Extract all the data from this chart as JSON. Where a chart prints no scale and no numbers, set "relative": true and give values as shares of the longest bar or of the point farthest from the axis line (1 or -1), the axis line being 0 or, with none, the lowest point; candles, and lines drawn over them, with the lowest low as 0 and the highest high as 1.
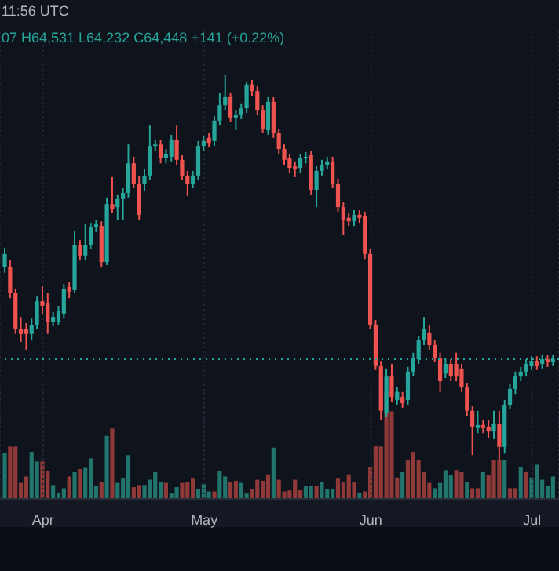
{
  "chart_data": [
    {
      "type": "candlestick",
      "relative": true,
      "tick_labels": false,
      "grid": "x",
      "annotations": [
        "11:56 UTC",
        "07 H64,531 L64,232 C64,448 +141 (+0.22%)"
      ],
      "xlim": [
        "--03-24",
        "--07-06"
      ],
      "xticks": [
        {
          "value": "--04-01",
          "label": null
        },
        {
          "value": "--05-01",
          "label": null
        },
        {
          "value": "--06-01",
          "label": null
        },
        {
          "value": "--07-01",
          "label": null
        }
      ],
      "ref_lines": [
        {
          "axis": "y",
          "value": 0.261,
          "color": "#26a69a",
          "line_style": "dotted"
        }
      ],
      "x": [
        "--03-25",
        "--03-26",
        "--03-27",
        "--03-28",
        "--03-29",
        "--03-30",
        "--03-31",
        "--04-01",
        "--04-02",
        "--04-03",
        "--04-04",
        "--04-05",
        "--04-06",
        "--04-07",
        "--04-08",
        "--04-09",
        "--04-10",
        "--04-11",
        "--04-12",
        "--04-13",
        "--04-14",
        "--04-15",
        "--04-16",
        "--04-17",
        "--04-18",
        "--04-19",
        "--04-20",
        "--04-21",
        "--04-22",
        "--04-23",
        "--04-24",
        "--04-25",
        "--04-26",
        "--04-27",
        "--04-28",
        "--04-29",
        "--04-30",
        "--05-01",
        "--05-02",
        "--05-03",
        "--05-04",
        "--05-05",
        "--05-06",
        "--05-07",
        "--05-08",
        "--05-09",
        "--05-10",
        "--05-11",
        "--05-12",
        "--05-13",
        "--05-14",
        "--05-15",
        "--05-16",
        "--05-17",
        "--05-18",
        "--05-19",
        "--05-20",
        "--05-21",
        "--05-22",
        "--05-23",
        "--05-24",
        "--05-25",
        "--05-26",
        "--05-27",
        "--05-28",
        "--05-29",
        "--05-30",
        "--05-31",
        "--06-01",
        "--06-02",
        "--06-03",
        "--06-04",
        "--06-05",
        "--06-06",
        "--06-07",
        "--06-08",
        "--06-09",
        "--06-10",
        "--06-11",
        "--06-12",
        "--06-13",
        "--06-14",
        "--06-15",
        "--06-16",
        "--06-17",
        "--06-18",
        "--06-19",
        "--06-20",
        "--06-21",
        "--06-22",
        "--06-23",
        "--06-24",
        "--06-25",
        "--06-26",
        "--06-27",
        "--06-28",
        "--06-29",
        "--06-30",
        "--07-01",
        "--07-02",
        "--07-03",
        "--07-04",
        "--07-05"
      ],
      "ohlc": [
        [
          0.502,
          0.551,
          0.486,
          0.535
        ],
        [
          0.502,
          0.518,
          0.42,
          0.433
        ],
        [
          0.433,
          0.445,
          0.327,
          0.339
        ],
        [
          0.339,
          0.371,
          0.306,
          0.327
        ],
        [
          0.339,
          0.355,
          0.286,
          0.327
        ],
        [
          0.327,
          0.367,
          0.31,
          0.351
        ],
        [
          0.351,
          0.424,
          0.339,
          0.412
        ],
        [
          0.412,
          0.453,
          0.38,
          0.4
        ],
        [
          0.408,
          0.433,
          0.327,
          0.359
        ],
        [
          0.359,
          0.384,
          0.347,
          0.371
        ],
        [
          0.359,
          0.4,
          0.351,
          0.388
        ],
        [
          0.38,
          0.457,
          0.367,
          0.445
        ],
        [
          0.449,
          0.461,
          0.42,
          0.437
        ],
        [
          0.441,
          0.596,
          0.433,
          0.559
        ],
        [
          0.559,
          0.571,
          0.518,
          0.531
        ],
        [
          0.531,
          0.612,
          0.518,
          0.559
        ],
        [
          0.559,
          0.616,
          0.547,
          0.604
        ],
        [
          0.604,
          0.624,
          0.592,
          0.612
        ],
        [
          0.608,
          0.62,
          0.502,
          0.514
        ],
        [
          0.514,
          0.682,
          0.506,
          0.665
        ],
        [
          0.665,
          0.735,
          0.641,
          0.653
        ],
        [
          0.657,
          0.69,
          0.624,
          0.678
        ],
        [
          0.678,
          0.706,
          0.624,
          0.694
        ],
        [
          0.694,
          0.82,
          0.682,
          0.771
        ],
        [
          0.771,
          0.788,
          0.706,
          0.718
        ],
        [
          0.718,
          0.739,
          0.624,
          0.637
        ],
        [
          0.718,
          0.755,
          0.698,
          0.739
        ],
        [
          0.739,
          0.869,
          0.727,
          0.816
        ],
        [
          0.816,
          0.833,
          0.804,
          0.82
        ],
        [
          0.82,
          0.833,
          0.771,
          0.784
        ],
        [
          0.784,
          0.808,
          0.771,
          0.796
        ],
        [
          0.788,
          0.845,
          0.776,
          0.833
        ],
        [
          0.833,
          0.869,
          0.767,
          0.78
        ],
        [
          0.78,
          0.792,
          0.727,
          0.739
        ],
        [
          0.739,
          0.751,
          0.686,
          0.718
        ],
        [
          0.718,
          0.751,
          0.706,
          0.739
        ],
        [
          0.739,
          0.829,
          0.727,
          0.816
        ],
        [
          0.816,
          0.841,
          0.804,
          0.829
        ],
        [
          0.837,
          0.849,
          0.812,
          0.824
        ],
        [
          0.829,
          0.894,
          0.816,
          0.882
        ],
        [
          0.882,
          0.955,
          0.869,
          0.922
        ],
        [
          0.922,
          1,
          0.91,
          0.943
        ],
        [
          0.943,
          0.955,
          0.878,
          0.89
        ],
        [
          0.89,
          0.91,
          0.857,
          0.898
        ],
        [
          0.898,
          0.927,
          0.886,
          0.914
        ],
        [
          0.914,
          0.984,
          0.902,
          0.976
        ],
        [
          0.976,
          0.988,
          0.947,
          0.959
        ],
        [
          0.959,
          0.971,
          0.898,
          0.91
        ],
        [
          0.91,
          0.922,
          0.849,
          0.861
        ],
        [
          0.857,
          0.943,
          0.845,
          0.931
        ],
        [
          0.931,
          0.943,
          0.837,
          0.849
        ],
        [
          0.849,
          0.861,
          0.796,
          0.808
        ],
        [
          0.808,
          0.82,
          0.767,
          0.78
        ],
        [
          0.784,
          0.796,
          0.747,
          0.759
        ],
        [
          0.763,
          0.776,
          0.735,
          0.755
        ],
        [
          0.759,
          0.796,
          0.747,
          0.784
        ],
        [
          0.784,
          0.8,
          0.771,
          0.788
        ],
        [
          0.792,
          0.804,
          0.69,
          0.702
        ],
        [
          0.702,
          0.763,
          0.657,
          0.751
        ],
        [
          0.751,
          0.78,
          0.739,
          0.767
        ],
        [
          0.767,
          0.788,
          0.755,
          0.776
        ],
        [
          0.776,
          0.788,
          0.706,
          0.718
        ],
        [
          0.718,
          0.731,
          0.645,
          0.657
        ],
        [
          0.657,
          0.669,
          0.584,
          0.624
        ],
        [
          0.629,
          0.641,
          0.608,
          0.62
        ],
        [
          0.62,
          0.649,
          0.608,
          0.637
        ],
        [
          0.637,
          0.649,
          0.616,
          0.629
        ],
        [
          0.633,
          0.645,
          0.522,
          0.535
        ],
        [
          0.535,
          0.547,
          0.339,
          0.351
        ],
        [
          0.351,
          0.363,
          0.233,
          0.245
        ],
        [
          0.245,
          0.257,
          0.102,
          0.127
        ],
        [
          0.122,
          0.237,
          0.11,
          0.216
        ],
        [
          0.216,
          0.249,
          0.151,
          0.163
        ],
        [
          0.155,
          0.188,
          0.143,
          0.176
        ],
        [
          0.163,
          0.176,
          0.135,
          0.147
        ],
        [
          0.155,
          0.241,
          0.143,
          0.229
        ],
        [
          0.229,
          0.278,
          0.216,
          0.265
        ],
        [
          0.261,
          0.322,
          0.249,
          0.31
        ],
        [
          0.31,
          0.371,
          0.298,
          0.339
        ],
        [
          0.331,
          0.351,
          0.286,
          0.298
        ],
        [
          0.298,
          0.31,
          0.253,
          0.265
        ],
        [
          0.265,
          0.278,
          0.176,
          0.204
        ],
        [
          0.224,
          0.265,
          0.212,
          0.249
        ],
        [
          0.249,
          0.261,
          0.204,
          0.216
        ],
        [
          0.249,
          0.278,
          0.204,
          0.216
        ],
        [
          0.237,
          0.249,
          0.176,
          0.188
        ],
        [
          0.188,
          0.2,
          0.114,
          0.127
        ],
        [
          0.127,
          0.139,
          0.012,
          0.086
        ],
        [
          0.082,
          0.127,
          0.069,
          0.09
        ],
        [
          0.09,
          0.102,
          0.069,
          0.082
        ],
        [
          0.086,
          0.102,
          0.057,
          0.073
        ],
        [
          0.073,
          0.127,
          0.053,
          0.094
        ],
        [
          0.094,
          0.127,
          0,
          0.033
        ],
        [
          0.033,
          0.155,
          0.016,
          0.143
        ],
        [
          0.143,
          0.196,
          0.131,
          0.184
        ],
        [
          0.184,
          0.229,
          0.171,
          0.216
        ],
        [
          0.216,
          0.241,
          0.204,
          0.229
        ],
        [
          0.229,
          0.261,
          0.216,
          0.249
        ],
        [
          0.245,
          0.269,
          0.233,
          0.257
        ],
        [
          0.257,
          0.269,
          0.233,
          0.245
        ],
        [
          0.249,
          0.273,
          0.237,
          0.261
        ],
        [
          0.261,
          0.273,
          0.241,
          0.253
        ],
        [
          0.253,
          0.273,
          0.245,
          0.261
        ]
      ],
      "colors": [
        "#26a69a",
        "#ef5350",
        "#ef5350",
        "#ef5350",
        "#ef5350",
        "#26a69a",
        "#26a69a",
        "#ef5350",
        "#ef5350",
        "#26a69a",
        "#26a69a",
        "#26a69a",
        "#ef5350",
        "#26a69a",
        "#ef5350",
        "#26a69a",
        "#26a69a",
        "#26a69a",
        "#ef5350",
        "#26a69a",
        "#ef5350",
        "#26a69a",
        "#26a69a",
        "#26a69a",
        "#ef5350",
        "#ef5350",
        "#26a69a",
        "#26a69a",
        "#26a69a",
        "#ef5350",
        "#26a69a",
        "#26a69a",
        "#ef5350",
        "#ef5350",
        "#ef5350",
        "#26a69a",
        "#26a69a",
        "#26a69a",
        "#ef5350",
        "#26a69a",
        "#26a69a",
        "#26a69a",
        "#ef5350",
        "#26a69a",
        "#26a69a",
        "#26a69a",
        "#ef5350",
        "#ef5350",
        "#ef5350",
        "#26a69a",
        "#ef5350",
        "#ef5350",
        "#ef5350",
        "#ef5350",
        "#ef5350",
        "#26a69a",
        "#26a69a",
        "#ef5350",
        "#26a69a",
        "#26a69a",
        "#26a69a",
        "#ef5350",
        "#ef5350",
        "#ef5350",
        "#ef5350",
        "#26a69a",
        "#ef5350",
        "#ef5350",
        "#ef5350",
        "#ef5350",
        "#ef5350",
        "#26a69a",
        "#ef5350",
        "#26a69a",
        "#ef5350",
        "#26a69a",
        "#26a69a",
        "#26a69a",
        "#26a69a",
        "#ef5350",
        "#ef5350",
        "#ef5350",
        "#26a69a",
        "#ef5350",
        "#ef5350",
        "#ef5350",
        "#ef5350",
        "#ef5350",
        "#26a69a",
        "#ef5350",
        "#ef5350",
        "#26a69a",
        "#ef5350",
        "#26a69a",
        "#26a69a",
        "#26a69a",
        "#26a69a",
        "#26a69a",
        "#26a69a",
        "#ef5350",
        "#26a69a",
        "#ef5350",
        "#26a69a"
      ]
    },
    {
      "type": "bar",
      "relative": true,
      "grid": "x",
      "xlim": [
        "--03-24",
        "--07-06"
      ],
      "xticks": [
        {
          "value": "--04-01",
          "label": "Apr"
        },
        {
          "value": "--05-01",
          "label": "May"
        },
        {
          "value": "--06-01",
          "label": "Jun"
        },
        {
          "value": "--07-01",
          "label": "Jul"
        }
      ],
      "x": [
        "--03-25",
        "--03-26",
        "--03-27",
        "--03-28",
        "--03-29",
        "--03-30",
        "--03-31",
        "--04-01",
        "--04-02",
        "--04-03",
        "--04-04",
        "--04-05",
        "--04-06",
        "--04-07",
        "--04-08",
        "--04-09",
        "--04-10",
        "--04-11",
        "--04-12",
        "--04-13",
        "--04-14",
        "--04-15",
        "--04-16",
        "--04-17",
        "--04-18",
        "--04-19",
        "--04-20",
        "--04-21",
        "--04-22",
        "--04-23",
        "--04-24",
        "--04-25",
        "--04-26",
        "--04-27",
        "--04-28",
        "--04-29",
        "--04-30",
        "--05-01",
        "--05-02",
        "--05-03",
        "--05-04",
        "--05-05",
        "--05-06",
        "--05-07",
        "--05-08",
        "--05-09",
        "--05-10",
        "--05-11",
        "--05-12",
        "--05-13",
        "--05-14",
        "--05-15",
        "--05-16",
        "--05-17",
        "--05-18",
        "--05-19",
        "--05-20",
        "--05-21",
        "--05-22",
        "--05-23",
        "--05-24",
        "--05-25",
        "--05-26",
        "--05-27",
        "--05-28",
        "--05-29",
        "--05-30",
        "--05-31",
        "--06-01",
        "--06-02",
        "--06-03",
        "--06-04",
        "--06-05",
        "--06-06",
        "--06-07",
        "--06-08",
        "--06-09",
        "--06-10",
        "--06-11",
        "--06-12",
        "--06-13",
        "--06-14",
        "--06-15",
        "--06-16",
        "--06-17",
        "--06-18",
        "--06-19",
        "--06-20",
        "--06-21",
        "--06-22",
        "--06-23",
        "--06-24",
        "--06-25",
        "--06-26",
        "--06-27",
        "--06-28",
        "--06-29",
        "--06-30",
        "--07-01",
        "--07-02",
        "--07-03",
        "--07-04",
        "--07-05"
      ],
      "values": [
        0.43,
        0.49,
        0.49,
        0.15,
        0.21,
        0.44,
        0.35,
        0.35,
        0.26,
        0.13,
        0.06,
        0.1,
        0.21,
        0.25,
        0.28,
        0.29,
        0.38,
        0.12,
        0.16,
        0.59,
        0.66,
        0.15,
        0.19,
        0.41,
        0.11,
        0.13,
        0.13,
        0.18,
        0.25,
        0.16,
        0.15,
        0.05,
        0.11,
        0.15,
        0.16,
        0.19,
        0.09,
        0.14,
        0.07,
        0.07,
        0.26,
        0.21,
        0.16,
        0.17,
        0.15,
        0.05,
        0.09,
        0.18,
        0.17,
        0.23,
        0.48,
        0.18,
        0.07,
        0.08,
        0.18,
        0.08,
        0.12,
        0.12,
        0.12,
        0.16,
        0.09,
        0.09,
        0.19,
        0.16,
        0.23,
        0.16,
        0.06,
        0.07,
        0.3,
        0.5,
        0.49,
        1,
        0.82,
        0.2,
        0.25,
        0.36,
        0.44,
        0.36,
        0.25,
        0.15,
        0.1,
        0.15,
        0.27,
        0.22,
        0.27,
        0.25,
        0.16,
        0.1,
        0.1,
        0.25,
        0.22,
        0.36,
        0.36,
        0.36,
        0.1,
        0.1,
        0.3,
        0.25,
        0.2,
        0.32,
        0.18,
        0.12,
        0.21
      ],
      "colors": [
        "#22756d",
        "#8f3a38",
        "#8f3a38",
        "#8f3a38",
        "#8f3a38",
        "#22756d",
        "#22756d",
        "#8f3a38",
        "#8f3a38",
        "#22756d",
        "#22756d",
        "#22756d",
        "#8f3a38",
        "#22756d",
        "#8f3a38",
        "#22756d",
        "#22756d",
        "#22756d",
        "#8f3a38",
        "#22756d",
        "#8f3a38",
        "#22756d",
        "#22756d",
        "#22756d",
        "#8f3a38",
        "#8f3a38",
        "#22756d",
        "#22756d",
        "#22756d",
        "#22756d",
        "#8f3a38",
        "#22756d",
        "#22756d",
        "#8f3a38",
        "#8f3a38",
        "#8f3a38",
        "#22756d",
        "#22756d",
        "#22756d",
        "#8f3a38",
        "#22756d",
        "#22756d",
        "#8f3a38",
        "#8f3a38",
        "#22756d",
        "#22756d",
        "#8f3a38",
        "#8f3a38",
        "#8f3a38",
        "#8f3a38",
        "#22756d",
        "#8f3a38",
        "#8f3a38",
        "#8f3a38",
        "#8f3a38",
        "#8f3a38",
        "#22756d",
        "#22756d",
        "#8f3a38",
        "#22756d",
        "#22756d",
        "#22756d",
        "#8f3a38",
        "#8f3a38",
        "#8f3a38",
        "#8f3a38",
        "#22756d",
        "#8f3a38",
        "#8f3a38",
        "#8f3a38",
        "#8f3a38",
        "#8f3a38",
        "#8f3a38",
        "#8f3a38",
        "#22756d",
        "#8f3a38",
        "#8f3a38",
        "#8f3a38",
        "#8f3a38",
        "#8f3a38",
        "#22756d",
        "#22756d",
        "#22756d",
        "#22756d",
        "#8f3a38",
        "#8f3a38",
        "#22756d",
        "#8f3a38",
        "#8f3a38",
        "#22756d",
        "#8f3a38",
        "#8f3a38",
        "#8f3a38",
        "#22756d",
        "#8f3a38",
        "#8f3a38",
        "#22756d",
        "#8f3a38",
        "#22756d",
        "#22756d",
        "#22756d",
        "#22756d",
        "#22756d"
      ]
    }
  ]
}
